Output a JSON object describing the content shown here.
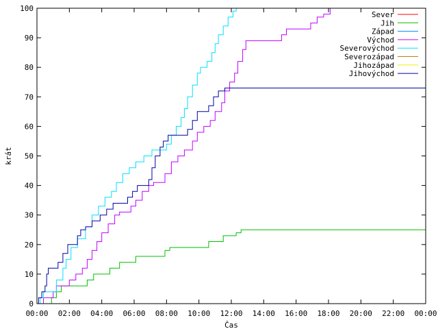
{
  "chart_data": {
    "type": "line",
    "title": "",
    "xlabel": "Čas",
    "ylabel": "krát",
    "xlim": [
      0,
      24
    ],
    "ylim": [
      0,
      100
    ],
    "grid": false,
    "legend_position": "top-right",
    "x_ticks": [
      {
        "value": 0,
        "label": "00:00"
      },
      {
        "value": 2,
        "label": "02:00"
      },
      {
        "value": 4,
        "label": "04:00"
      },
      {
        "value": 6,
        "label": "06:00"
      },
      {
        "value": 8,
        "label": "08:00"
      },
      {
        "value": 10,
        "label": "10:00"
      },
      {
        "value": 12,
        "label": "12:00"
      },
      {
        "value": 14,
        "label": "14:00"
      },
      {
        "value": 16,
        "label": "16:00"
      },
      {
        "value": 18,
        "label": "18:00"
      },
      {
        "value": 20,
        "label": "20:00"
      },
      {
        "value": 22,
        "label": "22:00"
      },
      {
        "value": 24,
        "label": "00:00"
      }
    ],
    "y_ticks": [
      {
        "value": 0,
        "label": "0"
      },
      {
        "value": 10,
        "label": "10"
      },
      {
        "value": 20,
        "label": "20"
      },
      {
        "value": 30,
        "label": "30"
      },
      {
        "value": 40,
        "label": "40"
      },
      {
        "value": 50,
        "label": "50"
      },
      {
        "value": 60,
        "label": "60"
      },
      {
        "value": 70,
        "label": "70"
      },
      {
        "value": 80,
        "label": "80"
      },
      {
        "value": 90,
        "label": "90"
      },
      {
        "value": 100,
        "label": "100"
      }
    ],
    "series": [
      {
        "name": "Sever",
        "color": "#ff0000",
        "points": []
      },
      {
        "name": "Jih",
        "color": "#00c000",
        "points": [
          [
            0,
            0
          ],
          [
            0.9,
            0
          ],
          [
            0.9,
            2
          ],
          [
            1.2,
            2
          ],
          [
            1.2,
            4
          ],
          [
            1.5,
            4
          ],
          [
            1.5,
            6
          ],
          [
            3.1,
            6
          ],
          [
            3.1,
            8
          ],
          [
            3.5,
            8
          ],
          [
            3.5,
            10
          ],
          [
            4.5,
            10
          ],
          [
            4.5,
            12
          ],
          [
            5.1,
            12
          ],
          [
            5.1,
            14
          ],
          [
            6.1,
            14
          ],
          [
            6.1,
            16
          ],
          [
            7.9,
            16
          ],
          [
            7.9,
            18
          ],
          [
            8.2,
            18
          ],
          [
            8.2,
            19
          ],
          [
            10.6,
            19
          ],
          [
            10.6,
            21
          ],
          [
            11.5,
            21
          ],
          [
            11.5,
            23
          ],
          [
            12.3,
            23
          ],
          [
            12.3,
            24
          ],
          [
            12.6,
            24
          ],
          [
            12.6,
            25
          ],
          [
            24,
            25
          ]
        ]
      },
      {
        "name": "Západ",
        "color": "#0080ff",
        "points": []
      },
      {
        "name": "Východ",
        "color": "#c000ff",
        "points": [
          [
            0,
            0
          ],
          [
            0.4,
            0
          ],
          [
            0.4,
            2
          ],
          [
            1.0,
            2
          ],
          [
            1.0,
            4
          ],
          [
            1.2,
            4
          ],
          [
            1.2,
            6
          ],
          [
            2.0,
            6
          ],
          [
            2.0,
            8
          ],
          [
            2.4,
            8
          ],
          [
            2.4,
            10
          ],
          [
            2.8,
            10
          ],
          [
            2.8,
            12
          ],
          [
            3.1,
            12
          ],
          [
            3.1,
            15
          ],
          [
            3.4,
            15
          ],
          [
            3.4,
            18
          ],
          [
            3.7,
            18
          ],
          [
            3.7,
            21
          ],
          [
            4.0,
            21
          ],
          [
            4.0,
            24
          ],
          [
            4.4,
            24
          ],
          [
            4.4,
            27
          ],
          [
            4.8,
            27
          ],
          [
            4.8,
            30
          ],
          [
            5.1,
            30
          ],
          [
            5.1,
            31
          ],
          [
            5.8,
            31
          ],
          [
            5.8,
            33
          ],
          [
            6.1,
            33
          ],
          [
            6.1,
            35
          ],
          [
            6.5,
            35
          ],
          [
            6.5,
            38
          ],
          [
            6.9,
            38
          ],
          [
            6.9,
            40
          ],
          [
            7.2,
            40
          ],
          [
            7.2,
            41
          ],
          [
            7.9,
            41
          ],
          [
            7.9,
            44
          ],
          [
            8.3,
            44
          ],
          [
            8.3,
            48
          ],
          [
            8.7,
            48
          ],
          [
            8.7,
            50
          ],
          [
            9.1,
            50
          ],
          [
            9.1,
            52
          ],
          [
            9.6,
            52
          ],
          [
            9.6,
            55
          ],
          [
            9.9,
            55
          ],
          [
            9.9,
            58
          ],
          [
            10.3,
            58
          ],
          [
            10.3,
            60
          ],
          [
            10.7,
            60
          ],
          [
            10.7,
            62
          ],
          [
            11.0,
            62
          ],
          [
            11.0,
            65
          ],
          [
            11.4,
            65
          ],
          [
            11.4,
            68
          ],
          [
            11.6,
            68
          ],
          [
            11.6,
            72
          ],
          [
            11.9,
            72
          ],
          [
            11.9,
            75
          ],
          [
            12.2,
            75
          ],
          [
            12.2,
            78
          ],
          [
            12.4,
            78
          ],
          [
            12.4,
            82
          ],
          [
            12.7,
            82
          ],
          [
            12.7,
            86
          ],
          [
            12.9,
            86
          ],
          [
            12.9,
            89
          ],
          [
            15.1,
            89
          ],
          [
            15.1,
            91
          ],
          [
            15.4,
            91
          ],
          [
            15.4,
            93
          ],
          [
            16.9,
            93
          ],
          [
            16.9,
            95
          ],
          [
            17.3,
            95
          ],
          [
            17.3,
            97
          ],
          [
            17.7,
            97
          ],
          [
            17.7,
            98
          ],
          [
            18.1,
            98
          ],
          [
            18.1,
            100
          ],
          [
            18.3,
            100
          ]
        ]
      },
      {
        "name": "Severovýchod",
        "color": "#00e0ff",
        "points": [
          [
            0,
            0
          ],
          [
            0.2,
            0
          ],
          [
            0.2,
            2
          ],
          [
            0.4,
            2
          ],
          [
            0.4,
            4
          ],
          [
            1.2,
            4
          ],
          [
            1.2,
            8
          ],
          [
            1.6,
            8
          ],
          [
            1.6,
            12
          ],
          [
            1.8,
            12
          ],
          [
            1.8,
            15
          ],
          [
            2.1,
            15
          ],
          [
            2.1,
            19
          ],
          [
            2.5,
            19
          ],
          [
            2.5,
            22
          ],
          [
            3.0,
            22
          ],
          [
            3.0,
            26
          ],
          [
            3.4,
            26
          ],
          [
            3.4,
            30
          ],
          [
            3.8,
            30
          ],
          [
            3.8,
            33
          ],
          [
            4.2,
            33
          ],
          [
            4.2,
            36
          ],
          [
            4.6,
            36
          ],
          [
            4.6,
            38
          ],
          [
            4.9,
            38
          ],
          [
            4.9,
            41
          ],
          [
            5.3,
            41
          ],
          [
            5.3,
            44
          ],
          [
            5.7,
            44
          ],
          [
            5.7,
            46
          ],
          [
            6.1,
            46
          ],
          [
            6.1,
            48
          ],
          [
            6.6,
            48
          ],
          [
            6.6,
            50
          ],
          [
            7.1,
            50
          ],
          [
            7.1,
            52
          ],
          [
            8.0,
            52
          ],
          [
            8.0,
            54
          ],
          [
            8.3,
            54
          ],
          [
            8.3,
            57
          ],
          [
            8.6,
            57
          ],
          [
            8.6,
            60
          ],
          [
            8.9,
            60
          ],
          [
            8.9,
            63
          ],
          [
            9.1,
            63
          ],
          [
            9.1,
            66
          ],
          [
            9.3,
            66
          ],
          [
            9.3,
            70
          ],
          [
            9.6,
            70
          ],
          [
            9.6,
            74
          ],
          [
            9.9,
            74
          ],
          [
            9.9,
            78
          ],
          [
            10.1,
            78
          ],
          [
            10.1,
            80
          ],
          [
            10.5,
            80
          ],
          [
            10.5,
            82
          ],
          [
            10.8,
            82
          ],
          [
            10.8,
            85
          ],
          [
            11.0,
            85
          ],
          [
            11.0,
            88
          ],
          [
            11.2,
            88
          ],
          [
            11.2,
            91
          ],
          [
            11.5,
            91
          ],
          [
            11.5,
            94
          ],
          [
            11.8,
            94
          ],
          [
            11.8,
            97
          ],
          [
            12.1,
            97
          ],
          [
            12.1,
            99
          ],
          [
            12.3,
            99
          ],
          [
            12.3,
            100
          ],
          [
            12.4,
            100
          ]
        ]
      },
      {
        "name": "Severozápad",
        "color": "#c08000",
        "points": []
      },
      {
        "name": "Jihozápad",
        "color": "#f0f000",
        "points": []
      },
      {
        "name": "Jihovýchod",
        "color": "#0000a0",
        "points": [
          [
            0,
            0
          ],
          [
            0.1,
            0
          ],
          [
            0.1,
            2
          ],
          [
            0.3,
            2
          ],
          [
            0.3,
            4
          ],
          [
            0.5,
            4
          ],
          [
            0.5,
            6
          ],
          [
            0.6,
            6
          ],
          [
            0.6,
            10
          ],
          [
            0.7,
            10
          ],
          [
            0.7,
            12
          ],
          [
            1.3,
            12
          ],
          [
            1.3,
            14
          ],
          [
            1.6,
            14
          ],
          [
            1.6,
            17
          ],
          [
            1.9,
            17
          ],
          [
            1.9,
            20
          ],
          [
            2.5,
            20
          ],
          [
            2.5,
            23
          ],
          [
            2.7,
            23
          ],
          [
            2.7,
            25
          ],
          [
            3.0,
            25
          ],
          [
            3.0,
            26
          ],
          [
            3.4,
            26
          ],
          [
            3.4,
            28
          ],
          [
            3.9,
            28
          ],
          [
            3.9,
            30
          ],
          [
            4.3,
            30
          ],
          [
            4.3,
            32
          ],
          [
            4.7,
            32
          ],
          [
            4.7,
            34
          ],
          [
            5.6,
            34
          ],
          [
            5.6,
            36
          ],
          [
            5.9,
            36
          ],
          [
            5.9,
            38
          ],
          [
            6.2,
            38
          ],
          [
            6.2,
            40
          ],
          [
            6.9,
            40
          ],
          [
            6.9,
            42
          ],
          [
            7.1,
            42
          ],
          [
            7.1,
            46
          ],
          [
            7.3,
            46
          ],
          [
            7.3,
            50
          ],
          [
            7.6,
            50
          ],
          [
            7.6,
            53
          ],
          [
            7.8,
            53
          ],
          [
            7.8,
            55
          ],
          [
            8.1,
            55
          ],
          [
            8.1,
            57
          ],
          [
            9.3,
            57
          ],
          [
            9.3,
            59
          ],
          [
            9.6,
            59
          ],
          [
            9.6,
            62
          ],
          [
            9.9,
            62
          ],
          [
            9.9,
            65
          ],
          [
            10.6,
            65
          ],
          [
            10.6,
            67
          ],
          [
            10.9,
            67
          ],
          [
            10.9,
            70
          ],
          [
            11.2,
            70
          ],
          [
            11.2,
            72
          ],
          [
            11.6,
            72
          ],
          [
            11.6,
            73
          ],
          [
            24,
            73
          ]
        ]
      }
    ]
  }
}
